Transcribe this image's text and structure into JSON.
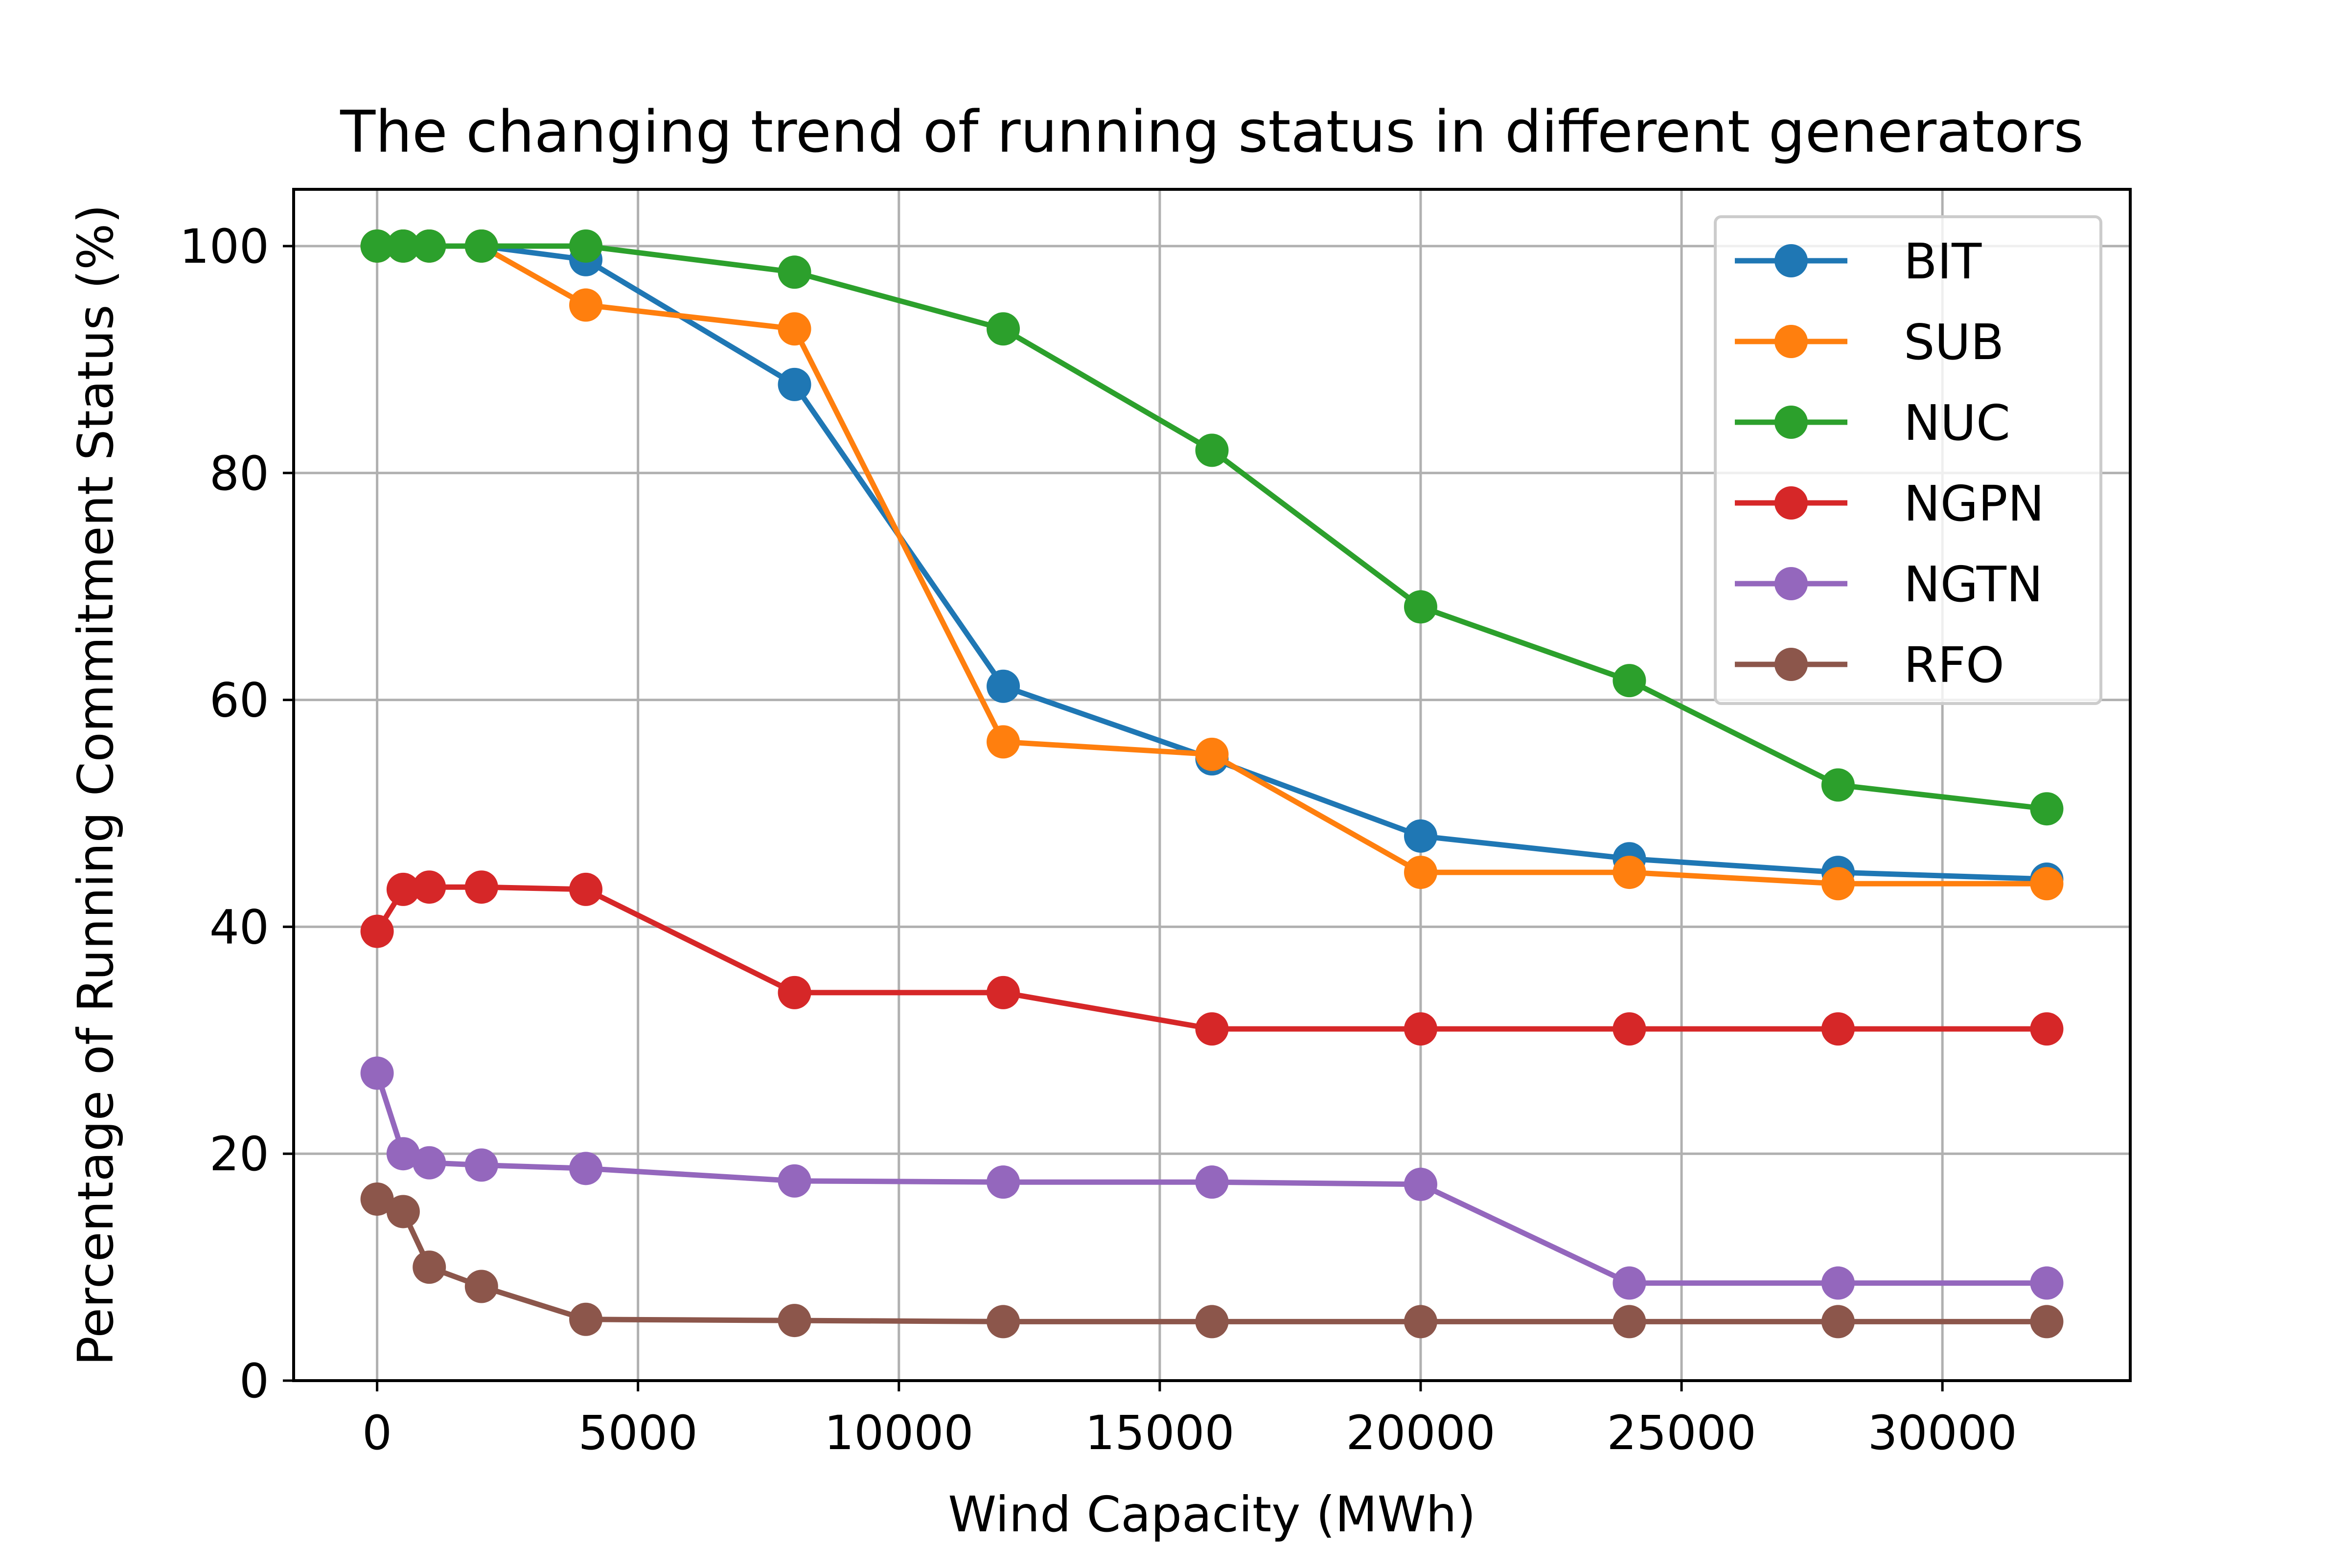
{
  "chart_data": {
    "type": "line",
    "title": "The changing trend of running status in different generators",
    "xlabel": "Wind Capacity (MWh)",
    "ylabel": "Percentage of Running Commitment Status (%)",
    "xlim": [
      -1600,
      33600
    ],
    "ylim": [
      0,
      105
    ],
    "xticks": [
      0,
      5000,
      10000,
      15000,
      20000,
      25000,
      30000
    ],
    "xtick_labels": [
      "0",
      "5000",
      "10000",
      "15000",
      "20000",
      "25000",
      "30000"
    ],
    "yticks": [
      0,
      20,
      40,
      60,
      80,
      100
    ],
    "ytick_labels": [
      "0",
      "20",
      "40",
      "60",
      "80",
      "100"
    ],
    "grid": true,
    "legend_position": "top-right",
    "x": [
      0,
      500,
      1000,
      2000,
      4000,
      8000,
      12000,
      16000,
      20000,
      24000,
      28000,
      32000
    ],
    "series": [
      {
        "name": "BIT",
        "color": "#1f77b4",
        "values": [
          100,
          100,
          100,
          100,
          98.8,
          87.8,
          61.2,
          54.8,
          48.0,
          46.0,
          44.8,
          44.2
        ]
      },
      {
        "name": "SUB",
        "color": "#ff7f0e",
        "values": [
          100,
          100,
          100,
          100,
          94.8,
          92.7,
          56.3,
          55.2,
          44.8,
          44.8,
          43.8,
          43.8
        ]
      },
      {
        "name": "NUC",
        "color": "#2ca02c",
        "values": [
          100,
          100,
          100,
          100,
          100,
          97.7,
          92.7,
          82.0,
          68.2,
          61.7,
          52.5,
          50.4
        ]
      },
      {
        "name": "NGPN",
        "color": "#d62728",
        "values": [
          39.6,
          43.3,
          43.5,
          43.5,
          43.3,
          34.2,
          34.2,
          31.0,
          31.0,
          31.0,
          31.0,
          31.0
        ]
      },
      {
        "name": "NGTN",
        "color": "#9467bd",
        "values": [
          27.1,
          20.0,
          19.2,
          19.0,
          18.7,
          17.6,
          17.5,
          17.5,
          17.3,
          8.6,
          8.6,
          8.6
        ]
      },
      {
        "name": "RFO",
        "color": "#8c564b",
        "values": [
          16.0,
          14.9,
          10.0,
          8.3,
          5.4,
          5.3,
          5.2,
          5.2,
          5.2,
          5.2,
          5.2,
          5.2
        ]
      }
    ]
  }
}
